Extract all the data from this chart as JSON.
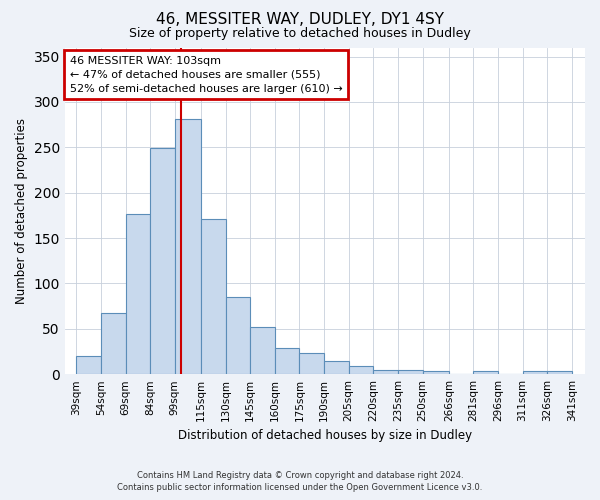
{
  "title": "46, MESSITER WAY, DUDLEY, DY1 4SY",
  "subtitle": "Size of property relative to detached houses in Dudley",
  "xlabel": "Distribution of detached houses by size in Dudley",
  "ylabel": "Number of detached properties",
  "bar_left_edges": [
    39,
    54,
    69,
    84,
    99,
    115,
    130,
    145,
    160,
    175,
    190,
    205,
    220,
    235,
    250,
    266,
    281,
    296,
    311,
    326,
    341
  ],
  "bar_heights": [
    20,
    67,
    176,
    249,
    281,
    171,
    85,
    52,
    29,
    23,
    15,
    9,
    5,
    5,
    4,
    0,
    4,
    0,
    3,
    3
  ],
  "tick_labels": [
    "39sqm",
    "54sqm",
    "69sqm",
    "84sqm",
    "99sqm",
    "115sqm",
    "130sqm",
    "145sqm",
    "160sqm",
    "175sqm",
    "190sqm",
    "205sqm",
    "220sqm",
    "235sqm",
    "250sqm",
    "266sqm",
    "281sqm",
    "296sqm",
    "311sqm",
    "326sqm",
    "341sqm"
  ],
  "bar_color": "#c8d9ed",
  "bar_edge_color": "#5b8db8",
  "vline_x": 103,
  "vline_color": "#cc0000",
  "ylim": [
    0,
    360
  ],
  "yticks": [
    0,
    50,
    100,
    150,
    200,
    250,
    300,
    350
  ],
  "annotation_title": "46 MESSITER WAY: 103sqm",
  "annotation_line1": "← 47% of detached houses are smaller (555)",
  "annotation_line2": "52% of semi-detached houses are larger (610) →",
  "annotation_box_color": "#cc0000",
  "footer1": "Contains HM Land Registry data © Crown copyright and database right 2024.",
  "footer2": "Contains public sector information licensed under the Open Government Licence v3.0.",
  "bg_color": "#eef2f8",
  "plot_bg_color": "#ffffff"
}
